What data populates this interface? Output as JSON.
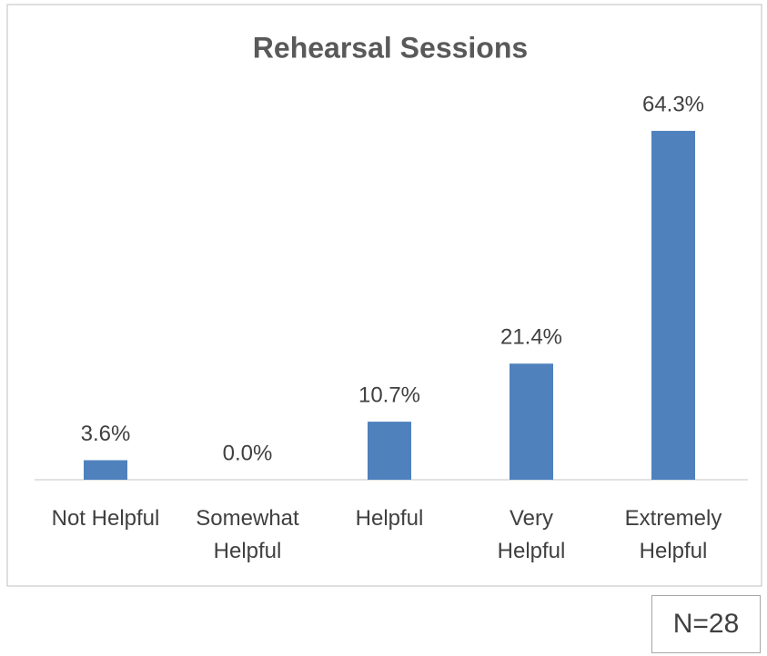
{
  "chart_data": {
    "type": "bar",
    "title": "Rehearsal Sessions",
    "categories": [
      "Not Helpful",
      "Somewhat\nHelpful",
      "Helpful",
      "Very\nHelpful",
      "Extremely\nHelpful"
    ],
    "values": [
      3.6,
      0.0,
      10.7,
      21.4,
      64.3
    ],
    "value_labels": [
      "3.6%",
      "0.0%",
      "10.7%",
      "21.4%",
      "64.3%"
    ],
    "color": "#4f81bd",
    "ylim": [
      0,
      70
    ],
    "annotation": "N=28"
  }
}
